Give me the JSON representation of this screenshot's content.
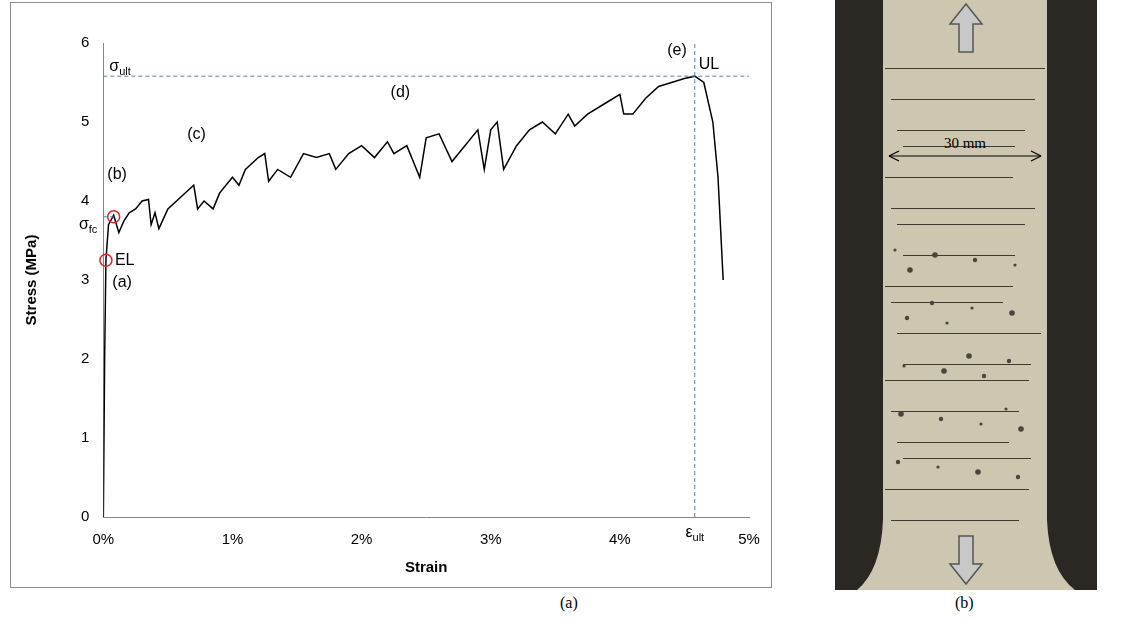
{
  "chart_data": {
    "type": "line",
    "x_label": "Strain",
    "y_label": "Stress (MPa)",
    "color": "#000000",
    "x": [
      0,
      0.01,
      0.02,
      0.04,
      0.08,
      0.12,
      0.16,
      0.2,
      0.25,
      0.3,
      0.35,
      0.37,
      0.4,
      0.43,
      0.5,
      0.6,
      0.7,
      0.73,
      0.78,
      0.85,
      0.9,
      1.0,
      1.05,
      1.1,
      1.2,
      1.25,
      1.28,
      1.35,
      1.45,
      1.55,
      1.65,
      1.75,
      1.8,
      1.9,
      2.0,
      2.1,
      2.2,
      2.25,
      2.35,
      2.45,
      2.5,
      2.6,
      2.7,
      2.8,
      2.9,
      2.95,
      3.0,
      3.05,
      3.1,
      3.2,
      3.3,
      3.4,
      3.5,
      3.6,
      3.65,
      3.75,
      3.9,
      4.0,
      4.03,
      4.1,
      4.2,
      4.3,
      4.4,
      4.5,
      4.58,
      4.65,
      4.72,
      4.76,
      4.8
    ],
    "values": [
      0,
      2.0,
      3.25,
      3.7,
      3.82,
      3.6,
      3.75,
      3.85,
      3.9,
      4.0,
      4.02,
      3.7,
      3.85,
      3.65,
      3.9,
      4.05,
      4.2,
      3.9,
      4.0,
      3.9,
      4.1,
      4.3,
      4.2,
      4.4,
      4.55,
      4.6,
      4.25,
      4.4,
      4.3,
      4.6,
      4.55,
      4.6,
      4.4,
      4.6,
      4.7,
      4.55,
      4.75,
      4.6,
      4.7,
      4.3,
      4.8,
      4.85,
      4.5,
      4.7,
      4.9,
      4.4,
      4.9,
      5.0,
      4.4,
      4.7,
      4.9,
      5.0,
      4.85,
      5.1,
      4.95,
      5.1,
      5.25,
      5.35,
      5.1,
      5.1,
      5.3,
      5.45,
      5.5,
      5.55,
      5.58,
      5.5,
      5.0,
      4.3,
      3.0
    ],
    "xlim": [
      0,
      5
    ],
    "xticks": [
      {
        "value": 0,
        "label": "0%"
      },
      {
        "value": 1,
        "label": "1%"
      },
      {
        "value": 2,
        "label": "2%"
      },
      {
        "value": 3,
        "label": "3%"
      },
      {
        "value": 4,
        "label": "4%"
      },
      {
        "value": 5,
        "label": "5%"
      }
    ],
    "ylim": [
      0,
      6
    ],
    "yticks": [
      0,
      1,
      2,
      3,
      4,
      5,
      6
    ],
    "grid": false,
    "annotations": {
      "stage_labels": [
        "(a)",
        "(b)",
        "(c)",
        "(d)",
        "(e)"
      ],
      "elastic_limit": {
        "label": "EL",
        "x": 0.02,
        "y": 3.25
      },
      "first_crack": {
        "symbol": "σ",
        "subscript": "fc",
        "x": 0.08,
        "y": 3.8
      },
      "ultimate": {
        "label": "UL",
        "x": 4.58,
        "y": 5.58,
        "stress_symbol": "σ",
        "stress_subscript": "ult",
        "strain_symbol": "ε",
        "strain_subscript": "ult"
      }
    }
  },
  "figure": {
    "captions": [
      "(a)",
      "(b)"
    ],
    "photo_label": "30 mm"
  }
}
